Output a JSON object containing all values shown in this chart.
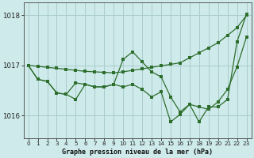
{
  "title": "Graphe pression niveau de la mer (hPa)",
  "bg_color": "#ceeaea",
  "grid_color": "#aacccc",
  "line_color": "#2d6e2d",
  "xlim": [
    -0.5,
    23.5
  ],
  "ylim": [
    1015.55,
    1018.25
  ],
  "yticks": [
    1016,
    1017,
    1018
  ],
  "xticks": [
    0,
    1,
    2,
    3,
    4,
    5,
    6,
    7,
    8,
    9,
    10,
    11,
    12,
    13,
    14,
    15,
    16,
    17,
    18,
    19,
    20,
    21,
    22,
    23
  ],
  "series": [
    [
      1017.0,
      1016.98,
      1016.96,
      1016.94,
      1016.92,
      1016.9,
      1016.88,
      1016.87,
      1016.86,
      1016.85,
      1016.87,
      1016.9,
      1016.93,
      1016.96,
      1016.99,
      1017.02,
      1017.05,
      1017.15,
      1017.25,
      1017.35,
      1017.45,
      1017.6,
      1017.75,
      1018.0
    ],
    [
      1017.0,
      1016.72,
      1016.68,
      1016.45,
      1016.42,
      1016.32,
      1016.62,
      1016.57,
      1016.57,
      1016.62,
      1016.57,
      1016.62,
      1016.52,
      1016.37,
      1016.47,
      1015.87,
      1016.02,
      1016.22,
      1015.87,
      1016.17,
      1016.17,
      1016.32,
      1017.47,
      1018.02
    ],
    [
      1017.0,
      1016.72,
      1016.68,
      1016.45,
      1016.42,
      1016.65,
      1016.62,
      1016.57,
      1016.57,
      1016.62,
      1017.12,
      1017.27,
      1017.07,
      1016.87,
      1016.77,
      1016.37,
      1016.07,
      1016.22,
      1016.17,
      1016.12,
      1016.27,
      1016.52,
      1016.97,
      1017.57
    ]
  ]
}
